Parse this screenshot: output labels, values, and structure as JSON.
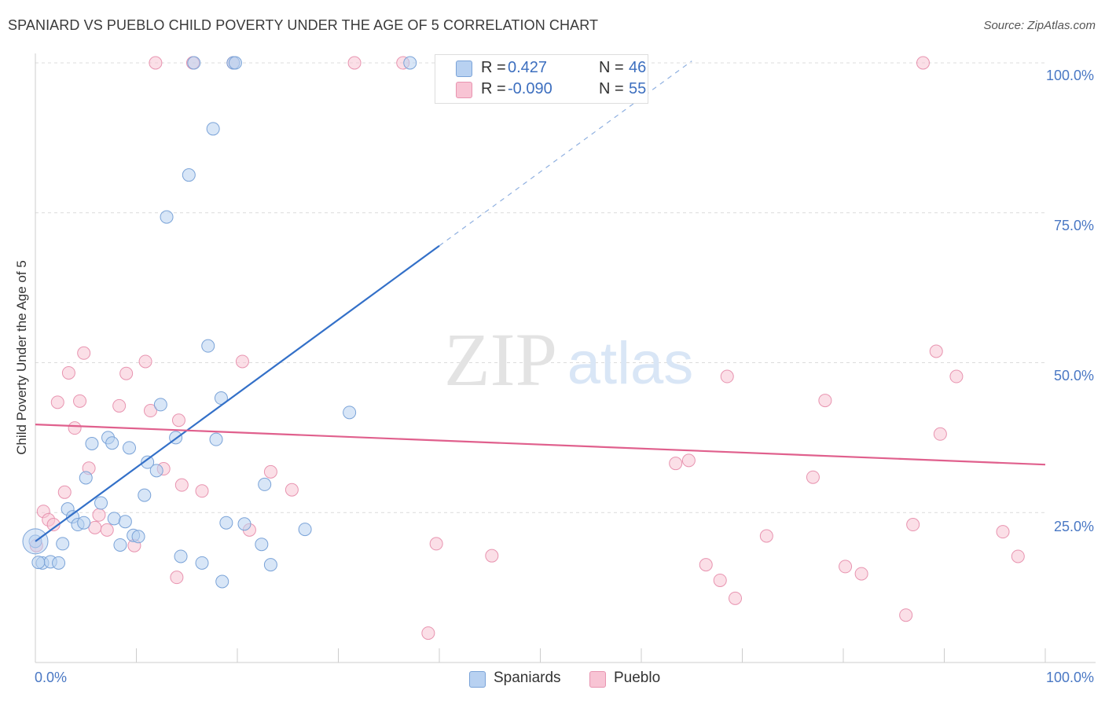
{
  "title": "SPANIARD VS PUEBLO CHILD POVERTY UNDER THE AGE OF 5 CORRELATION CHART",
  "source": "Source: ZipAtlas.com",
  "watermark": {
    "zip": "ZIP",
    "atlas": "atlas"
  },
  "colors": {
    "spaniards_fill": "#b8d1f1",
    "spaniards_stroke": "#7aa3d8",
    "spaniards_line": "#3370c8",
    "pueblo_fill": "#f8c4d4",
    "pueblo_stroke": "#e894b0",
    "pueblo_line": "#e0608d",
    "tick_text": "#4a78c4",
    "grid": "#dcdcdc"
  },
  "legend": {
    "rows": [
      {
        "r_label": "R =",
        "r_value": " 0.427",
        "n_label": "N =",
        "n_value": "46"
      },
      {
        "r_label": "R =",
        "r_value": "-0.090",
        "n_label": "N =",
        "n_value": "55"
      }
    ]
  },
  "bottom_legend": [
    "Spaniards",
    "Pueblo"
  ],
  "chart_data": {
    "type": "scatter",
    "title": "SPANIARD VS PUEBLO CHILD POVERTY UNDER THE AGE OF 5 CORRELATION CHART",
    "xlabel": "",
    "ylabel": "Child Poverty Under the Age of 5",
    "xlim": [
      0,
      100
    ],
    "ylim": [
      0,
      100
    ],
    "x_tick_labels": [
      "0.0%",
      "100.0%"
    ],
    "y_tick_labels": [
      "100.0%",
      "75.0%",
      "50.0%",
      "25.0%"
    ],
    "y_tick_values": [
      100,
      75,
      50,
      25
    ],
    "grid": true,
    "legend_position": "top-center",
    "series": [
      {
        "name": "Spaniards",
        "R": 0.427,
        "N": 46,
        "trend": {
          "x0": 0,
          "y0": 20.2,
          "x1": 40,
          "y1": 69.5,
          "extends_dashed_to": [
            65,
            100
          ]
        },
        "points": [
          [
            0,
            20.2
          ],
          [
            0.7,
            16.6
          ],
          [
            1.5,
            16.8
          ],
          [
            2.3,
            16.6
          ],
          [
            2.7,
            19.8
          ],
          [
            3.2,
            25.6
          ],
          [
            3.7,
            24.3
          ],
          [
            4.2,
            23
          ],
          [
            4.8,
            23.3
          ],
          [
            5,
            30.8
          ],
          [
            5.6,
            36.5
          ],
          [
            6.5,
            26.6
          ],
          [
            7.2,
            37.5
          ],
          [
            7.6,
            36.6
          ],
          [
            7.8,
            24
          ],
          [
            8.4,
            19.6
          ],
          [
            8.9,
            23.5
          ],
          [
            9.3,
            35.8
          ],
          [
            9.7,
            21.2
          ],
          [
            10.2,
            21
          ],
          [
            10.8,
            27.9
          ],
          [
            11.1,
            33.4
          ],
          [
            12,
            32
          ],
          [
            12.4,
            43
          ],
          [
            13,
            74.3
          ],
          [
            13.9,
            37.5
          ],
          [
            14.4,
            17.7
          ],
          [
            15.2,
            81.3
          ],
          [
            15.7,
            100
          ],
          [
            16.5,
            16.6
          ],
          [
            17.1,
            52.8
          ],
          [
            17.6,
            89
          ],
          [
            17.9,
            37.2
          ],
          [
            18.4,
            44.1
          ],
          [
            18.5,
            13.5
          ],
          [
            18.9,
            23.3
          ],
          [
            19.6,
            100
          ],
          [
            19.8,
            100
          ],
          [
            20.7,
            23.1
          ],
          [
            22.4,
            19.7
          ],
          [
            22.7,
            29.7
          ],
          [
            23.3,
            16.3
          ],
          [
            26.7,
            22.2
          ],
          [
            31.1,
            41.7
          ],
          [
            37.1,
            100
          ],
          [
            0.3,
            16.7
          ]
        ]
      },
      {
        "name": "Pueblo",
        "R": -0.09,
        "N": 55,
        "trend": {
          "x0": 0,
          "y0": 39.7,
          "x1": 100,
          "y1": 33
        },
        "points": [
          [
            0.1,
            19.5
          ],
          [
            0.8,
            25.2
          ],
          [
            1.3,
            23.8
          ],
          [
            1.8,
            23
          ],
          [
            2.2,
            43.4
          ],
          [
            2.9,
            28.4
          ],
          [
            3.3,
            48.3
          ],
          [
            3.9,
            39.1
          ],
          [
            4.4,
            43.6
          ],
          [
            4.8,
            51.6
          ],
          [
            5.3,
            32.4
          ],
          [
            5.9,
            22.5
          ],
          [
            6.3,
            24.6
          ],
          [
            7.1,
            22.1
          ],
          [
            8.3,
            42.8
          ],
          [
            9,
            48.2
          ],
          [
            9.8,
            19.5
          ],
          [
            10.9,
            50.2
          ],
          [
            11.4,
            42
          ],
          [
            11.9,
            100
          ],
          [
            12.7,
            32.3
          ],
          [
            14,
            14.2
          ],
          [
            14.2,
            40.4
          ],
          [
            14.5,
            29.6
          ],
          [
            15.6,
            100
          ],
          [
            16.5,
            28.6
          ],
          [
            19.6,
            100
          ],
          [
            20.5,
            50.2
          ],
          [
            21.2,
            22.1
          ],
          [
            23.3,
            31.8
          ],
          [
            25.4,
            28.8
          ],
          [
            31.6,
            100
          ],
          [
            36.4,
            100
          ],
          [
            38.9,
            4.9
          ],
          [
            39.7,
            19.8
          ],
          [
            45.2,
            17.8
          ],
          [
            63.4,
            33.2
          ],
          [
            64.7,
            33.7
          ],
          [
            66.4,
            16.3
          ],
          [
            67.8,
            13.7
          ],
          [
            68.5,
            47.7
          ],
          [
            69.3,
            10.7
          ],
          [
            72.4,
            21.1
          ],
          [
            77,
            30.9
          ],
          [
            78.2,
            43.7
          ],
          [
            80.2,
            16
          ],
          [
            81.8,
            14.8
          ],
          [
            86.2,
            7.9
          ],
          [
            86.9,
            23
          ],
          [
            87.9,
            100
          ],
          [
            89.2,
            51.9
          ],
          [
            89.6,
            38.1
          ],
          [
            91.2,
            47.7
          ],
          [
            95.8,
            21.8
          ],
          [
            97.3,
            17.7
          ]
        ]
      }
    ]
  }
}
